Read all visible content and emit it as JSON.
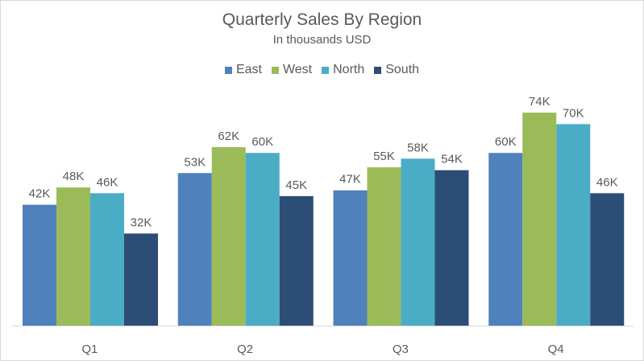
{
  "chart_data": {
    "type": "bar",
    "title": "Quarterly Sales By Region",
    "subtitle": "In thousands USD",
    "categories": [
      "Q1",
      "Q2",
      "Q3",
      "Q4"
    ],
    "series": [
      {
        "name": "East",
        "color": "#4F81BD",
        "values": [
          42,
          53,
          47,
          60
        ]
      },
      {
        "name": "West",
        "color": "#9BBB59",
        "values": [
          48,
          62,
          55,
          74
        ]
      },
      {
        "name": "North",
        "color": "#4BACC6",
        "values": [
          46,
          60,
          58,
          70
        ]
      },
      {
        "name": "South",
        "color": "#2C4D75",
        "values": [
          32,
          45,
          54,
          46
        ]
      }
    ],
    "label_suffix": "K",
    "ylim": [
      0,
      80
    ],
    "grid": false,
    "legend": "top"
  }
}
